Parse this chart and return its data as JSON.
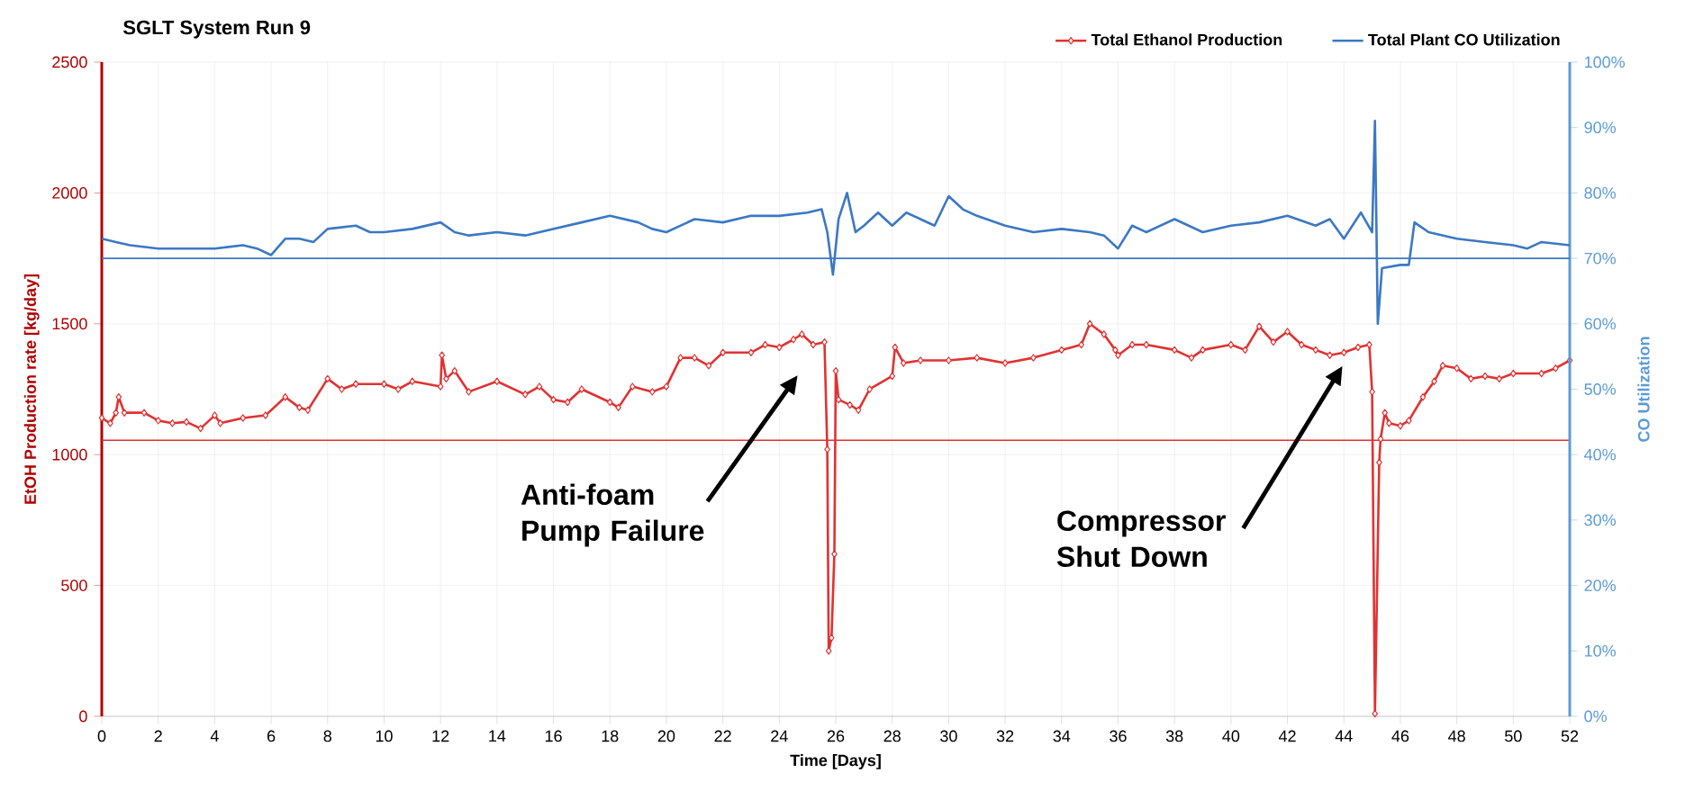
{
  "chart_data": {
    "type": "line",
    "title": "SGLT System Run 9",
    "xlabel": "Time [Days]",
    "ylabel": "EtOH Production rate [kg/day]",
    "y2label": "CO Utilization",
    "xlim": [
      0,
      52
    ],
    "xticks": [
      0,
      2,
      4,
      6,
      8,
      10,
      12,
      14,
      16,
      18,
      20,
      22,
      24,
      26,
      28,
      30,
      32,
      34,
      36,
      38,
      40,
      42,
      44,
      46,
      48,
      50,
      52
    ],
    "ylim": [
      0,
      2500
    ],
    "yticks": [
      0,
      500,
      1000,
      1500,
      2000,
      2500
    ],
    "y2lim": [
      0,
      100
    ],
    "y2ticks": [
      {
        "value": 0,
        "label": "0%"
      },
      {
        "value": 10,
        "label": "10%"
      },
      {
        "value": 20,
        "label": "20%"
      },
      {
        "value": 30,
        "label": "30%"
      },
      {
        "value": 40,
        "label": "40%"
      },
      {
        "value": 50,
        "label": "50%"
      },
      {
        "value": 60,
        "label": "60%"
      },
      {
        "value": 70,
        "label": "70%"
      },
      {
        "value": 80,
        "label": "80%"
      },
      {
        "value": 90,
        "label": "90%"
      },
      {
        "value": 100,
        "label": "100%"
      }
    ],
    "grid": true,
    "legend": "top right",
    "series": [
      {
        "name": "Total Ethanol Production",
        "color": "#e03232",
        "marker": "diamond",
        "x": [
          0,
          0.3,
          0.5,
          0.6,
          0.8,
          1.5,
          2,
          2.5,
          3,
          3.5,
          4,
          4.2,
          5,
          5.8,
          6.5,
          7,
          7.3,
          8,
          8.5,
          9,
          10,
          10.5,
          11,
          12,
          12.05,
          12.2,
          12.5,
          13,
          14,
          15,
          15.5,
          16,
          16.5,
          17,
          18,
          18.3,
          18.8,
          19.5,
          20,
          20.5,
          21,
          21.5,
          22,
          23,
          23.5,
          24,
          24.5,
          24.8,
          25.2,
          25.6,
          25.7,
          25.75,
          25.85,
          25.95,
          26,
          26.1,
          26.5,
          26.8,
          27.2,
          28,
          28.1,
          28.4,
          29,
          30,
          31,
          32,
          33,
          34,
          34.7,
          35,
          35.5,
          35.9,
          36,
          36.5,
          37,
          38,
          38.6,
          39,
          40,
          40.5,
          41,
          41.5,
          42,
          42.5,
          43,
          43.5,
          44,
          44.5,
          44.9,
          45,
          45.1,
          45.25,
          45.3,
          45.45,
          45.6,
          46,
          46.3,
          46.8,
          47.2,
          47.5,
          48,
          48.5,
          49,
          49.5,
          50,
          51,
          51.5,
          52
        ],
        "values": [
          1140,
          1120,
          1160,
          1220,
          1160,
          1160,
          1130,
          1120,
          1125,
          1100,
          1150,
          1120,
          1140,
          1150,
          1220,
          1180,
          1170,
          1290,
          1250,
          1270,
          1270,
          1250,
          1280,
          1260,
          1380,
          1290,
          1320,
          1240,
          1280,
          1230,
          1260,
          1210,
          1200,
          1250,
          1200,
          1180,
          1260,
          1240,
          1260,
          1370,
          1370,
          1340,
          1390,
          1390,
          1420,
          1410,
          1440,
          1460,
          1420,
          1430,
          1020,
          250,
          300,
          620,
          1320,
          1210,
          1190,
          1170,
          1250,
          1300,
          1410,
          1350,
          1360,
          1360,
          1370,
          1350,
          1370,
          1400,
          1420,
          1500,
          1460,
          1400,
          1380,
          1420,
          1420,
          1400,
          1370,
          1400,
          1420,
          1400,
          1490,
          1430,
          1470,
          1420,
          1400,
          1380,
          1390,
          1410,
          1420,
          1240,
          10,
          970,
          1060,
          1160,
          1120,
          1110,
          1130,
          1220,
          1280,
          1340,
          1330,
          1290,
          1300,
          1290,
          1310,
          1310,
          1330,
          1360
        ]
      },
      {
        "name": "Total Plant CO Utilization",
        "color": "#3b78c3",
        "marker": "none",
        "axis": "y2",
        "x": [
          0,
          0.5,
          1,
          2,
          3,
          4,
          5,
          5.5,
          6,
          6.5,
          7,
          7.5,
          8,
          9,
          9.5,
          10,
          11,
          12,
          12.5,
          13,
          14,
          15,
          16,
          17,
          18,
          19,
          19.5,
          20,
          21,
          22,
          23,
          24,
          25,
          25.5,
          25.7,
          25.9,
          26.1,
          26.4,
          26.7,
          27,
          27.5,
          28,
          28.5,
          29,
          29.5,
          30,
          30.5,
          31,
          32,
          33,
          34,
          35,
          35.5,
          36,
          36.5,
          37,
          38,
          38.5,
          39,
          40,
          41,
          42,
          43,
          43.5,
          44,
          44.6,
          45,
          45.1,
          45.2,
          45.35,
          46,
          46.3,
          46.5,
          47,
          48,
          49,
          50,
          50.5,
          51,
          52
        ],
        "values": [
          73,
          72.5,
          72,
          71.5,
          71.5,
          71.5,
          72,
          71.5,
          70.5,
          73,
          73,
          72.5,
          74.5,
          75,
          74,
          74,
          74.5,
          75.5,
          74,
          73.5,
          74,
          73.5,
          74.5,
          75.5,
          76.5,
          75.5,
          74.5,
          74,
          76,
          75.5,
          76.5,
          76.5,
          77,
          77.5,
          74,
          67.5,
          76,
          80,
          74,
          75,
          77,
          75,
          77,
          76,
          75,
          79.5,
          77.5,
          76.5,
          75,
          74,
          74.5,
          74,
          73.5,
          71.5,
          75,
          74,
          76,
          75,
          74,
          75,
          75.5,
          76.5,
          75,
          76,
          73,
          77,
          74,
          91,
          60,
          68.5,
          69,
          69,
          75.5,
          74,
          73,
          72.5,
          72,
          71.5,
          72.5,
          72
        ]
      }
    ],
    "ref_lines": [
      {
        "axis": "y",
        "value": 1055,
        "color": "#e03232"
      },
      {
        "axis": "y2",
        "value": 70,
        "color": "#3b78c3"
      }
    ],
    "annotations": [
      "Anti-foam Pump Failure",
      "Compressor Shut Down"
    ]
  }
}
